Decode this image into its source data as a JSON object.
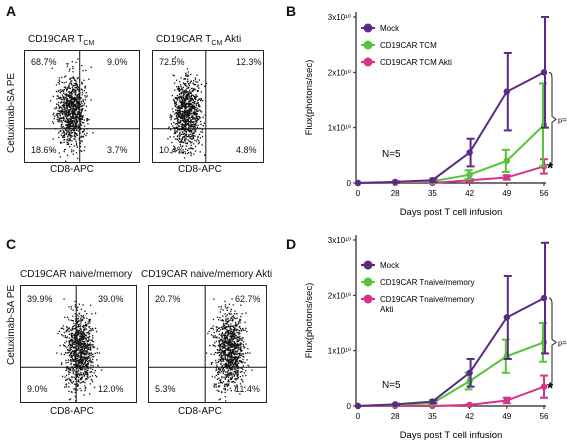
{
  "panels": {
    "A": {
      "letter": "A",
      "ylabel": "Cetuximab-SA PE",
      "plots": [
        {
          "title": "CD19CAR T",
          "title_sub": "CM",
          "title_tail": "",
          "xlabel": "CD8-APC",
          "quadrants": {
            "ul": "68.7%",
            "ur": "9.0%",
            "ll": "18.6%",
            "lr": "3.7%"
          }
        },
        {
          "title": "CD19CAR T",
          "title_sub": "CM",
          "title_tail": " Akti",
          "xlabel": "CD8-APC",
          "quadrants": {
            "ul": "72.5%",
            "ur": "12.3%",
            "ll": "10.4%",
            "lr": "4.8%"
          }
        }
      ]
    },
    "B": {
      "letter": "B"
    },
    "C": {
      "letter": "C",
      "ylabel": "Cetuximab-SA PE",
      "plots": [
        {
          "title": "CD19CAR naive/memory",
          "title_sub": "",
          "title_tail": "",
          "xlabel": "CD8-APC",
          "quadrants": {
            "ul": "39.9%",
            "ur": "39.0%",
            "ll": "9.0%",
            "lr": "12.0%"
          }
        },
        {
          "title": "CD19CAR naive/memory Akti",
          "title_sub": "",
          "title_tail": "",
          "xlabel": "CD8-APC",
          "quadrants": {
            "ul": "20.7%",
            "ur": "62.7%",
            "ll": "5.3%",
            "lr": "11.4%"
          }
        }
      ]
    },
    "D": {
      "letter": "D"
    }
  },
  "colors": {
    "mock": "#5b2a86",
    "green": "#56c43b",
    "pink": "#d6338a"
  },
  "chart_data": [
    {
      "type": "line",
      "title": "",
      "xlabel": "Days post T cell infusion",
      "ylabel": "Flux(photons/sec)",
      "x": [
        0,
        28,
        35,
        42,
        49,
        56
      ],
      "ylim": [
        0,
        30000000000
      ],
      "yticks": [
        "0",
        "1x10¹⁰",
        "2x10¹⁰",
        "3x10¹⁰"
      ],
      "annotation_n": "N=5",
      "annotation_p": "p=0.01",
      "annotation_star": "*",
      "legend_position": "top-left",
      "series": [
        {
          "name": "Mock",
          "color": "#5b2a86",
          "values": [
            0,
            200000000,
            500000000,
            5500000000,
            16500000000,
            20000000000
          ],
          "errors": [
            0,
            100000000,
            300000000,
            2500000000,
            7000000000,
            10000000000
          ]
        },
        {
          "name": "CD19CAR TCM",
          "color": "#56c43b",
          "values": [
            0,
            100000000,
            300000000,
            1500000000,
            4000000000,
            10500000000
          ],
          "errors": [
            0,
            50000000,
            150000000,
            800000000,
            2000000000,
            7500000000
          ]
        },
        {
          "name": "CD19CAR TCM Akti",
          "color": "#d6338a",
          "values": [
            0,
            0,
            0,
            500000000,
            1000000000,
            3000000000
          ],
          "errors": [
            0,
            0,
            0,
            200000000,
            400000000,
            1300000000
          ]
        }
      ]
    },
    {
      "type": "line",
      "title": "",
      "xlabel": "Days post T cell infusion",
      "ylabel": "Flux(photons/sec)",
      "x": [
        0,
        28,
        35,
        42,
        49,
        56
      ],
      "ylim": [
        0,
        30000000000
      ],
      "yticks": [
        "0",
        "1x10¹⁰",
        "2x10¹⁰",
        "3x10¹⁰"
      ],
      "annotation_n": "N=5",
      "annotation_p": "p=0.01",
      "annotation_star": "*",
      "legend_position": "top-left",
      "series": [
        {
          "name": "Mock",
          "color": "#5b2a86",
          "values": [
            0,
            300000000,
            800000000,
            6000000000,
            16000000000,
            19500000000
          ],
          "errors": [
            0,
            100000000,
            300000000,
            2500000000,
            7500000000,
            10000000000
          ]
        },
        {
          "name": "CD19CAR Tnaive/memory",
          "color": "#56c43b",
          "values": [
            0,
            200000000,
            500000000,
            4500000000,
            9000000000,
            11500000000
          ],
          "errors": [
            0,
            100000000,
            200000000,
            1500000000,
            3000000000,
            3500000000
          ]
        },
        {
          "name": "CD19CAR Tnaive/memory Akti",
          "color": "#d6338a",
          "values": [
            0,
            0,
            0,
            200000000,
            1000000000,
            3500000000
          ],
          "errors": [
            0,
            0,
            0,
            100000000,
            500000000,
            2000000000
          ]
        }
      ]
    }
  ]
}
